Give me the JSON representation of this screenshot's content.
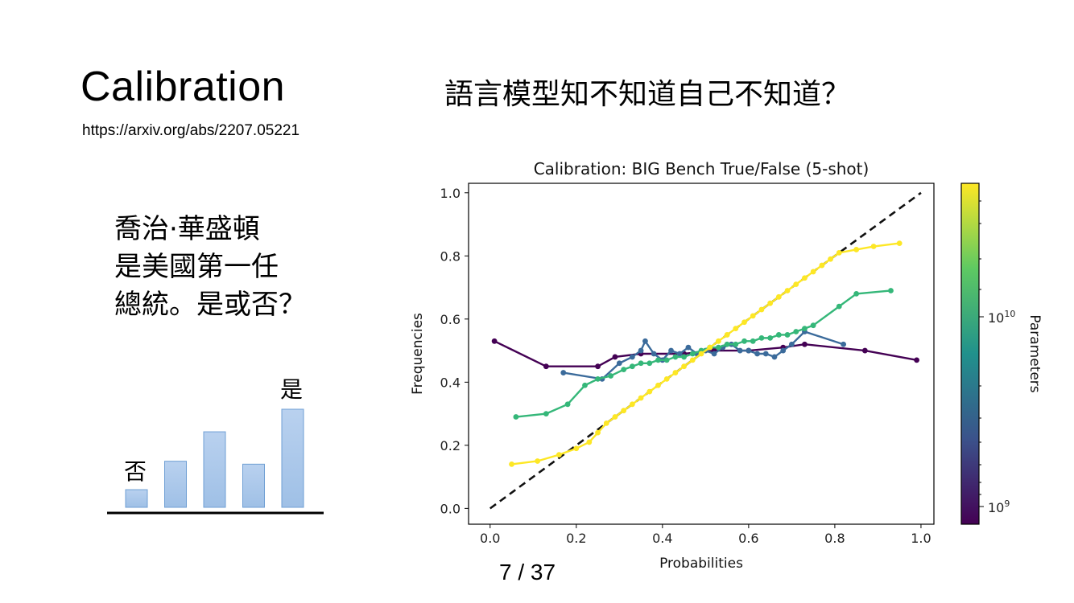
{
  "slide": {
    "title": "Calibration",
    "link": "https://arxiv.org/abs/2207.05221",
    "headline": "語言模型知不知道自己不知道？",
    "question_lines": [
      "喬治·華盛頓",
      "是美國第一任",
      "總統。是或否？"
    ],
    "bar_labels": {
      "no": "否",
      "yes": "是"
    },
    "bar_values": [
      0.18,
      0.47,
      0.77,
      0.44,
      1.0
    ],
    "pager": "7 / 37",
    "bar_color": "#9fc0e6"
  },
  "chart_data": {
    "type": "line",
    "title": "Calibration: BIG Bench True/False (5-shot)",
    "xlabel": "Probabilities",
    "ylabel": "Frequencies",
    "xlim": [
      -0.05,
      1.03
    ],
    "ylim": [
      -0.05,
      1.03
    ],
    "xticks": [
      "0.0",
      "0.2",
      "0.4",
      "0.6",
      "0.8",
      "1.0"
    ],
    "yticks": [
      "0.0",
      "0.2",
      "0.4",
      "0.6",
      "0.8",
      "1.0"
    ],
    "reference_line": [
      [
        0,
        0
      ],
      [
        1,
        1
      ]
    ],
    "colorbar": {
      "label": "Parameters",
      "scale": "log",
      "ticks": [
        "10^9",
        "10^10"
      ],
      "colors": [
        "#440154",
        "#3b528b",
        "#21918c",
        "#5ec962",
        "#fde725"
      ]
    },
    "series": [
      {
        "color": "#440154",
        "x": [
          0.01,
          0.13,
          0.25,
          0.29,
          0.35,
          0.45,
          0.52,
          0.6,
          0.68,
          0.73,
          0.87,
          0.99
        ],
        "y": [
          0.53,
          0.45,
          0.45,
          0.48,
          0.49,
          0.49,
          0.5,
          0.5,
          0.51,
          0.52,
          0.5,
          0.47
        ]
      },
      {
        "color": "#3b6b9b",
        "x": [
          0.17,
          0.26,
          0.3,
          0.33,
          0.35,
          0.36,
          0.38,
          0.4,
          0.42,
          0.44,
          0.46,
          0.48,
          0.5,
          0.52,
          0.54,
          0.56,
          0.58,
          0.6,
          0.62,
          0.64,
          0.66,
          0.68,
          0.7,
          0.73,
          0.82
        ],
        "y": [
          0.43,
          0.41,
          0.46,
          0.48,
          0.5,
          0.53,
          0.49,
          0.47,
          0.5,
          0.49,
          0.51,
          0.49,
          0.5,
          0.49,
          0.51,
          0.52,
          0.5,
          0.5,
          0.49,
          0.49,
          0.48,
          0.5,
          0.52,
          0.56,
          0.52
        ]
      },
      {
        "color": "#35b779",
        "x": [
          0.06,
          0.13,
          0.18,
          0.22,
          0.25,
          0.28,
          0.31,
          0.33,
          0.35,
          0.37,
          0.39,
          0.41,
          0.43,
          0.45,
          0.47,
          0.49,
          0.51,
          0.53,
          0.55,
          0.57,
          0.59,
          0.61,
          0.63,
          0.65,
          0.67,
          0.69,
          0.71,
          0.73,
          0.75,
          0.81,
          0.85,
          0.93
        ],
        "y": [
          0.29,
          0.3,
          0.33,
          0.39,
          0.41,
          0.42,
          0.44,
          0.45,
          0.46,
          0.46,
          0.47,
          0.47,
          0.48,
          0.48,
          0.49,
          0.5,
          0.51,
          0.51,
          0.52,
          0.52,
          0.53,
          0.53,
          0.54,
          0.54,
          0.55,
          0.55,
          0.56,
          0.57,
          0.58,
          0.64,
          0.68,
          0.69
        ]
      },
      {
        "color": "#fde725",
        "x": [
          0.05,
          0.11,
          0.16,
          0.2,
          0.23,
          0.25,
          0.27,
          0.29,
          0.31,
          0.33,
          0.35,
          0.37,
          0.39,
          0.41,
          0.43,
          0.45,
          0.47,
          0.49,
          0.51,
          0.53,
          0.55,
          0.57,
          0.59,
          0.61,
          0.63,
          0.65,
          0.67,
          0.69,
          0.71,
          0.73,
          0.75,
          0.77,
          0.79,
          0.81,
          0.85,
          0.89,
          0.95
        ],
        "y": [
          0.14,
          0.15,
          0.17,
          0.19,
          0.21,
          0.24,
          0.27,
          0.29,
          0.31,
          0.33,
          0.35,
          0.37,
          0.39,
          0.41,
          0.43,
          0.45,
          0.47,
          0.49,
          0.51,
          0.53,
          0.55,
          0.57,
          0.59,
          0.61,
          0.63,
          0.65,
          0.67,
          0.69,
          0.71,
          0.73,
          0.75,
          0.77,
          0.79,
          0.81,
          0.82,
          0.83,
          0.84
        ]
      }
    ]
  }
}
